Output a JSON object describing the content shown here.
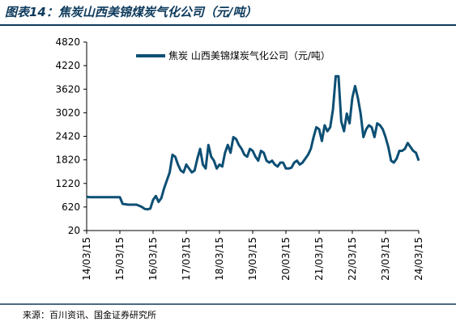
{
  "chart_data": {
    "type": "line",
    "title": "图表14：焦炭山西美锦煤炭气化公司（元/吨）",
    "source": "来源：百川资讯、国金证券研究所",
    "x": [
      "14/03/15",
      "14/04/15",
      "14/05/15",
      "14/06/15",
      "14/07/15",
      "14/08/15",
      "14/09/15",
      "14/10/15",
      "14/11/15",
      "14/12/15",
      "15/01/15",
      "15/02/15",
      "15/03/15",
      "15/04/15",
      "15/05/15",
      "15/06/15",
      "15/07/15",
      "15/08/15",
      "15/09/15",
      "15/10/15",
      "15/11/15",
      "15/12/15",
      "16/01/15",
      "16/02/15",
      "16/03/15",
      "16/04/15",
      "16/05/15",
      "16/06/15",
      "16/07/15",
      "16/08/15",
      "16/09/15",
      "16/10/15",
      "16/11/15",
      "16/12/15",
      "17/01/15",
      "17/02/15",
      "17/03/15",
      "17/04/15",
      "17/05/15",
      "17/06/15",
      "17/07/15",
      "17/08/15",
      "17/09/15",
      "17/10/15",
      "17/11/15",
      "17/12/15",
      "18/01/15",
      "18/02/15",
      "18/03/15",
      "18/04/15",
      "18/05/15",
      "18/06/15",
      "18/07/15",
      "18/08/15",
      "18/09/15",
      "18/10/15",
      "18/11/15",
      "18/12/15",
      "19/01/15",
      "19/02/15",
      "19/03/15",
      "19/04/15",
      "19/05/15",
      "19/06/15",
      "19/07/15",
      "19/08/15",
      "19/09/15",
      "19/10/15",
      "19/11/15",
      "19/12/15",
      "20/01/15",
      "20/02/15",
      "20/03/15",
      "20/04/15",
      "20/05/15",
      "20/06/15",
      "20/07/15",
      "20/08/15",
      "20/09/15",
      "20/10/15",
      "20/11/15",
      "20/12/15",
      "21/01/15",
      "21/02/15",
      "21/03/15",
      "21/04/15",
      "21/05/15",
      "21/06/15",
      "21/07/15",
      "21/08/15",
      "21/09/15",
      "21/10/15",
      "21/11/15",
      "21/12/15",
      "22/01/15",
      "22/02/15",
      "22/03/15",
      "22/04/15",
      "22/05/15",
      "22/06/15",
      "22/07/15",
      "22/08/15",
      "22/09/15",
      "22/10/15",
      "22/11/15",
      "22/12/15",
      "23/01/15",
      "23/02/15",
      "23/03/15",
      "23/04/15",
      "23/05/15",
      "23/06/15",
      "23/07/15",
      "23/08/15",
      "23/09/15",
      "23/10/15",
      "23/11/15",
      "23/12/15",
      "24/01/15",
      "24/02/15",
      "24/03/15"
    ],
    "series": [
      {
        "name": "焦炭 山西美锦煤炭气化公司（元/吨）",
        "color": "#0d4f74",
        "values": [
          880,
          870,
          870,
          870,
          870,
          870,
          870,
          870,
          870,
          870,
          870,
          870,
          870,
          700,
          690,
          680,
          680,
          680,
          680,
          650,
          620,
          570,
          560,
          580,
          800,
          900,
          750,
          850,
          1100,
          1300,
          1500,
          1950,
          1900,
          1700,
          1550,
          1500,
          1700,
          1600,
          1500,
          1550,
          1850,
          2100,
          1700,
          1600,
          2200,
          1900,
          1800,
          1600,
          1700,
          1650,
          2000,
          2200,
          2000,
          2400,
          2350,
          2200,
          2100,
          1950,
          1900,
          2100,
          2050,
          1900,
          1800,
          2050,
          2000,
          1800,
          1750,
          1800,
          1700,
          1650,
          1750,
          1750,
          1600,
          1600,
          1620,
          1750,
          1800,
          1700,
          1750,
          1850,
          1950,
          2100,
          2400,
          2650,
          2600,
          2300,
          2700,
          2550,
          2650,
          3100,
          3950,
          3950,
          2800,
          2550,
          3000,
          2750,
          3400,
          3700,
          3400,
          3000,
          2400,
          2600,
          2700,
          2650,
          2400,
          2750,
          2700,
          2600,
          2400,
          2150,
          1800,
          1750,
          1850,
          2050,
          2050,
          2100,
          2250,
          2150,
          2050,
          2000,
          1800
        ]
      }
    ],
    "xticks": [
      "14/03/15",
      "15/03/15",
      "16/03/15",
      "17/03/15",
      "18/03/15",
      "19/03/15",
      "20/03/15",
      "21/03/15",
      "22/03/15",
      "23/03/15",
      "24/03/15"
    ],
    "ylim": [
      20,
      4820
    ],
    "yticks": [
      20,
      620,
      1220,
      1820,
      2420,
      3020,
      3620,
      4220,
      4820
    ],
    "legend": "top"
  }
}
